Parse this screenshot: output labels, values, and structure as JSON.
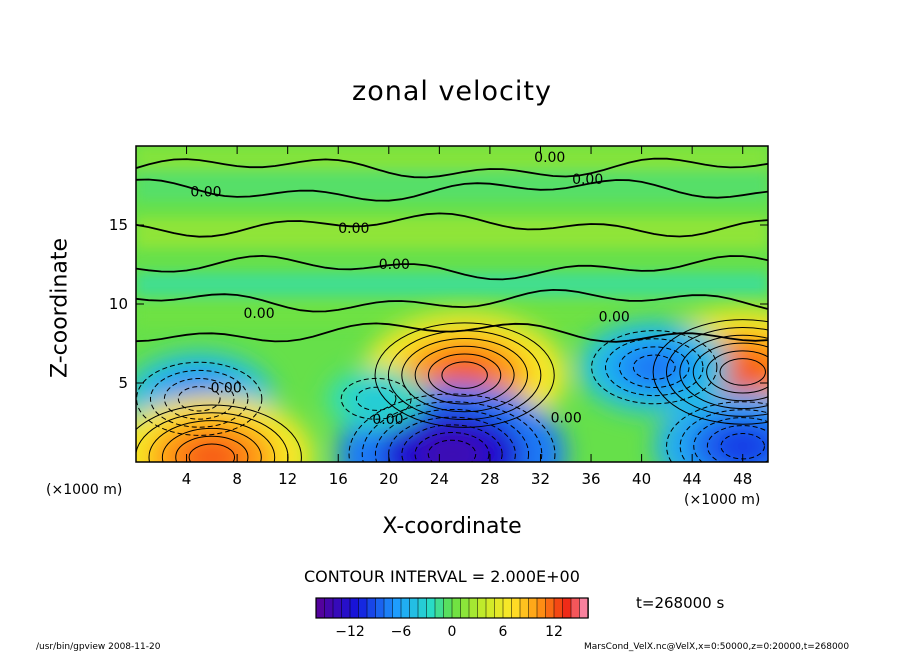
{
  "chart_data": {
    "type": "heatmap",
    "title": "zonal velocity",
    "xlabel": "X-coordinate",
    "ylabel": "Z-coordinate",
    "x_unit": "(×1000 m)",
    "z_unit": "(×1000 m)",
    "xlim": [
      0,
      50
    ],
    "ylim": [
      0,
      20
    ],
    "x_ticks": [
      "4",
      "8",
      "12",
      "16",
      "20",
      "24",
      "28",
      "32",
      "36",
      "40",
      "44",
      "48"
    ],
    "y_ticks": [
      "5",
      "10",
      "15"
    ],
    "contour_labels": [
      "0.00",
      "0.00",
      "0.00",
      "0.00",
      "0.00",
      "0.00",
      "0.00",
      "0.00",
      "0.00",
      "0.00"
    ],
    "contour_interval_text": "CONTOUR INTERVAL = 2.000E+00",
    "time_text": "t=268000 s",
    "colorbar": {
      "min": -16,
      "max": 16,
      "ticks": [
        "−12",
        "−6",
        "0",
        "6",
        "12"
      ]
    },
    "features": [
      {
        "x": 26,
        "z": 5.5,
        "value": 12
      },
      {
        "x": 48,
        "z": 5.7,
        "value": 12
      },
      {
        "x": 25,
        "z": 0.5,
        "value": -14
      },
      {
        "x": 48,
        "z": 1.0,
        "value": -10
      },
      {
        "x": 5,
        "z": 4.0,
        "value": -8
      },
      {
        "x": 41,
        "z": 6.0,
        "value": -8
      },
      {
        "x": 6,
        "z": 0.3,
        "value": 12
      },
      {
        "x": 19,
        "z": 4.0,
        "value": -4
      }
    ]
  },
  "footer": {
    "left": "/usr/bin/gpview   2008-11-20",
    "right": "MarsCond_VelX.nc@VelX,x=0:50000,z=0:20000,t=268000"
  },
  "colors": {
    "background_mid": "#66e04a",
    "positive": "#ff3c1e",
    "negative": "#2030d8"
  }
}
